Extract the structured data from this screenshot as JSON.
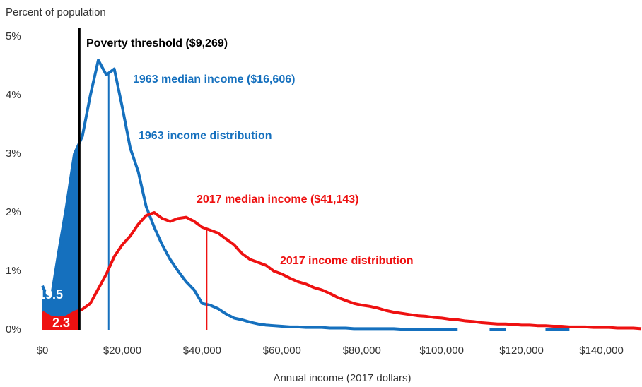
{
  "chart_data": {
    "type": "line",
    "ylabel": "Percent of population",
    "xlabel": "Annual income (2017 dollars)",
    "xlim": [
      0,
      150000
    ],
    "ylim": [
      0,
      5
    ],
    "xticks": [
      {
        "value": 0,
        "label": "$0"
      },
      {
        "value": 20000,
        "label": "$20,000"
      },
      {
        "value": 40000,
        "label": "$40,000"
      },
      {
        "value": 60000,
        "label": "$60,000"
      },
      {
        "value": 80000,
        "label": "$80,000"
      },
      {
        "value": 100000,
        "label": "$100,000"
      },
      {
        "value": 120000,
        "label": "$120,000"
      },
      {
        "value": 140000,
        "label": "$140,000"
      }
    ],
    "yticks": [
      {
        "value": 0,
        "label": "0%"
      },
      {
        "value": 1,
        "label": "1%"
      },
      {
        "value": 2,
        "label": "2%"
      },
      {
        "value": 3,
        "label": "3%"
      },
      {
        "value": 4,
        "label": "4%"
      },
      {
        "value": 5,
        "label": "5%"
      }
    ],
    "grid": false,
    "poverty_threshold": 9269,
    "poverty_label": "Poverty threshold ($9,269)",
    "x": [
      0,
      2000,
      4000,
      6000,
      8000,
      10000,
      12000,
      14000,
      16000,
      18000,
      20000,
      22000,
      24000,
      26000,
      28000,
      30000,
      32000,
      34000,
      36000,
      38000,
      40000,
      42000,
      44000,
      46000,
      48000,
      50000,
      52000,
      54000,
      56000,
      58000,
      60000,
      62000,
      64000,
      66000,
      68000,
      70000,
      72000,
      74000,
      76000,
      78000,
      80000,
      82000,
      84000,
      86000,
      88000,
      90000,
      92000,
      94000,
      96000,
      98000,
      100000,
      102000,
      104000,
      106000,
      108000,
      110000,
      112000,
      114000,
      116000,
      118000,
      120000,
      122000,
      124000,
      126000,
      128000,
      130000,
      132000,
      134000,
      136000,
      138000,
      140000,
      142000,
      144000,
      146000,
      148000,
      150000
    ],
    "series": [
      {
        "name": "1963 income distribution",
        "color": "#1570be",
        "median": 16606,
        "median_label": "1963 median income ($16,606)",
        "below_poverty": 19.5,
        "values": [
          0.75,
          0.45,
          1.3,
          2.1,
          3.0,
          3.3,
          4.0,
          4.6,
          4.35,
          4.45,
          3.8,
          3.1,
          2.7,
          2.1,
          1.75,
          1.45,
          1.2,
          1.0,
          0.82,
          0.68,
          0.45,
          0.42,
          0.36,
          0.27,
          0.2,
          0.17,
          0.13,
          0.1,
          0.08,
          0.07,
          0.06,
          0.05,
          0.05,
          0.04,
          0.04,
          0.04,
          0.03,
          0.03,
          0.03,
          0.02,
          0.02,
          0.02,
          0.02,
          0.02,
          0.02,
          0.01,
          0.01,
          0.01,
          0.01,
          0.01,
          0.01,
          0.01,
          0.01,
          null,
          null,
          null,
          0.01,
          0.01,
          0.01,
          null,
          null,
          null,
          null,
          0.01,
          0.01,
          0.01,
          0.01,
          null,
          null,
          null,
          null,
          null,
          null,
          null,
          null,
          null
        ]
      },
      {
        "name": "2017 income distribution",
        "color": "#ee1111",
        "median": 41143,
        "median_label": "2017 median income ($41,143)",
        "below_poverty": 2.3,
        "values": [
          0.3,
          0.22,
          0.2,
          0.22,
          0.3,
          0.35,
          0.45,
          0.7,
          0.95,
          1.25,
          1.45,
          1.6,
          1.8,
          1.95,
          2.0,
          1.9,
          1.85,
          1.9,
          1.92,
          1.85,
          1.75,
          1.7,
          1.65,
          1.55,
          1.45,
          1.3,
          1.2,
          1.15,
          1.1,
          1.0,
          0.95,
          0.88,
          0.82,
          0.78,
          0.72,
          0.68,
          0.62,
          0.55,
          0.5,
          0.45,
          0.42,
          0.4,
          0.37,
          0.33,
          0.3,
          0.28,
          0.26,
          0.24,
          0.23,
          0.21,
          0.2,
          0.18,
          0.17,
          0.15,
          0.14,
          0.12,
          0.11,
          0.1,
          0.1,
          0.09,
          0.08,
          0.08,
          0.07,
          0.07,
          0.06,
          0.06,
          0.05,
          0.05,
          0.05,
          0.04,
          0.04,
          0.04,
          0.03,
          0.03,
          0.03,
          0.02
        ]
      }
    ]
  }
}
